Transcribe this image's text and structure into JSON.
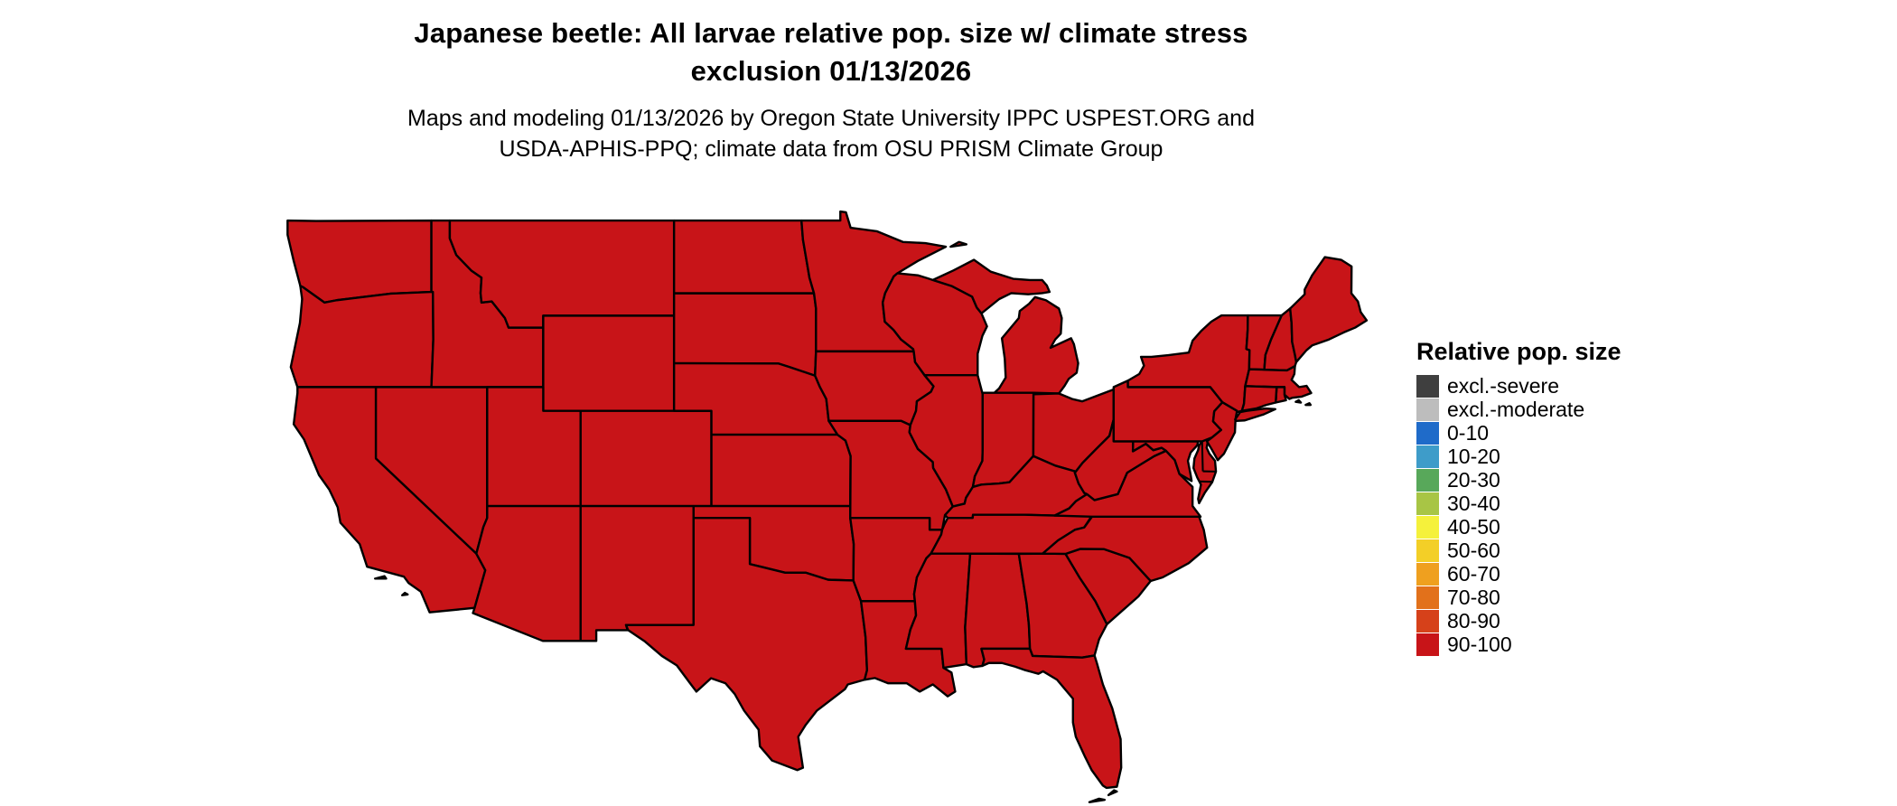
{
  "page": {
    "background": "#ffffff"
  },
  "title": {
    "line1": "Japanese beetle: All larvae relative pop. size w/ climate stress",
    "line2": "exclusion 01/13/2026"
  },
  "subtitle": {
    "line1": "Maps and modeling 01/13/2026 by Oregon State University IPPC USPEST.ORG and",
    "line2": "USDA-APHIS-PPQ; climate data from OSU PRISM Climate Group"
  },
  "legend": {
    "title": "Relative pop. size",
    "entries": [
      {
        "label": "excl.-severe",
        "color": "#3F3F3F"
      },
      {
        "label": "excl.-moderate",
        "color": "#BDBDBD"
      },
      {
        "label": "0-10",
        "color": "#1F6BC9"
      },
      {
        "label": "10-20",
        "color": "#3E9CC9"
      },
      {
        "label": "20-30",
        "color": "#58A85A"
      },
      {
        "label": "30-40",
        "color": "#A8C545"
      },
      {
        "label": "40-50",
        "color": "#F5F13B"
      },
      {
        "label": "50-60",
        "color": "#F3CF27"
      },
      {
        "label": "60-70",
        "color": "#EFA01F"
      },
      {
        "label": "70-80",
        "color": "#E2711B"
      },
      {
        "label": "80-90",
        "color": "#D6411A"
      },
      {
        "label": "90-100",
        "color": "#C81418"
      }
    ]
  },
  "map": {
    "region": "Contiguous United States",
    "uniform_class": "90-100",
    "fill_color": "#C81418",
    "border_color": "#000000"
  }
}
